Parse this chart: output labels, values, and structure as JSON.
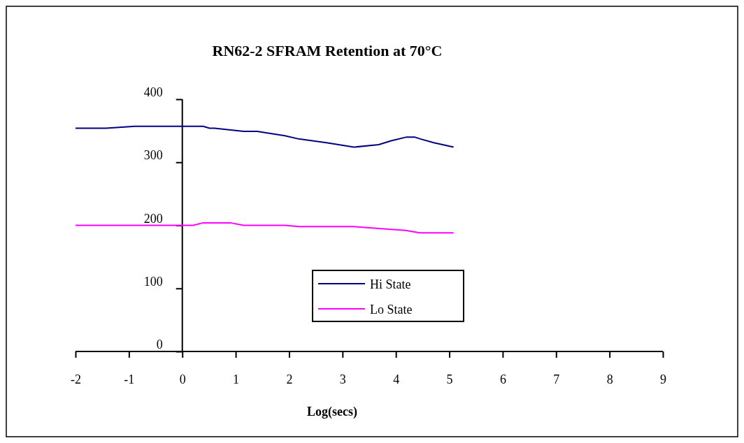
{
  "chart_data": {
    "type": "line",
    "title": "RN62-2 SFRAM Retention at 70°C",
    "xlabel": "Log(secs)",
    "xlim": [
      -2,
      9
    ],
    "xticks": [
      -2,
      -1,
      0,
      1,
      2,
      3,
      4,
      5,
      6,
      7,
      8,
      9
    ],
    "ylim": [
      0,
      400
    ],
    "yticks": [
      0,
      100,
      200,
      300,
      400
    ],
    "grid": false,
    "legend": "bottom",
    "line_style": "solid",
    "marker": "none",
    "series": [
      {
        "name": "Hi State",
        "color": "#000080",
        "x": [
          -2,
          -1.43,
          -0.89,
          0.39,
          0.51,
          0.6,
          1.15,
          1.4,
          1.92,
          2.18,
          2.7,
          3.21,
          3.68,
          3.91,
          4.2,
          4.35,
          4.46,
          4.71,
          5.08
        ],
        "values": [
          354,
          354,
          357,
          357,
          354,
          354,
          349,
          349,
          342,
          337,
          331,
          324,
          328,
          334,
          340,
          340,
          337,
          331,
          324
        ]
      },
      {
        "name": "Lo State",
        "color": "#ff00ff",
        "x": [
          -2,
          -1.43,
          0.2,
          0.39,
          0.9,
          1.15,
          1.92,
          2.18,
          3.21,
          3.68,
          4.18,
          4.45,
          5.08
        ],
        "values": [
          200,
          200,
          200,
          204,
          204,
          200,
          200,
          198,
          198,
          195,
          192,
          188,
          188
        ]
      }
    ]
  }
}
